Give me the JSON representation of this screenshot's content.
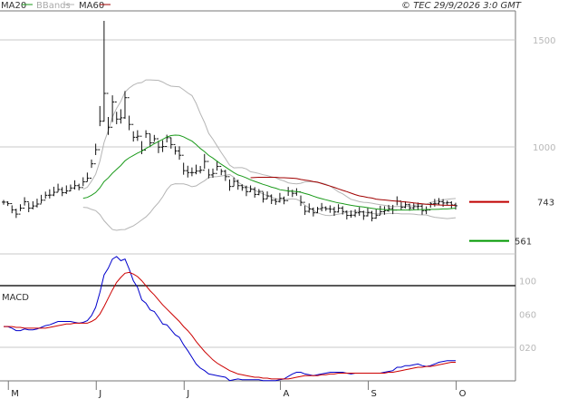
{
  "header": {
    "legend": [
      {
        "label": "MA20",
        "color": "#1a9a1a"
      },
      {
        "label": "BBands",
        "color": "#b5b5b5"
      },
      {
        "label": "MA60",
        "color": "#a00000"
      }
    ],
    "copyright": "© TEC 29/9/2026 3:0 GMT"
  },
  "macd_panel": {
    "label": "MACD"
  },
  "chart_data": [
    {
      "type": "ohlc",
      "name": "price",
      "y_ticks": [
        "1500",
        "1000"
      ],
      "y_tick_values": [
        1500,
        1000
      ],
      "ylim": [
        395,
        1620
      ],
      "x_labels": [
        "M",
        "J",
        "J",
        "A",
        "S",
        "O"
      ],
      "x_label_index": [
        2,
        23,
        44,
        67,
        88,
        109
      ],
      "n_bars": 109,
      "grid": true,
      "close": [
        742,
        735,
        706,
        686,
        714,
        744,
        714,
        724,
        733,
        751,
        774,
        775,
        788,
        801,
        786,
        794,
        808,
        819,
        810,
        837,
        854,
        921,
        987,
        1120,
        1250,
        1092,
        1210,
        1130,
        1136,
        1230,
        1105,
        1045,
        1050,
        985,
        1062,
        1019,
        1038,
        999,
        1002,
        1043,
        1011,
        981,
        961,
        889,
        880,
        880,
        887,
        891,
        932,
        869,
        876,
        909,
        886,
        861,
        815,
        839,
        819,
        810,
        791,
        802,
        778,
        792,
        757,
        771,
        751,
        745,
        760,
        749,
        793,
        783,
        790,
        741,
        699,
        710,
        692,
        711,
        716,
        711,
        709,
        696,
        714,
        698,
        680,
        681,
        692,
        696,
        678,
        694,
        667,
        681,
        697,
        702,
        712,
        705,
        747,
        718,
        730,
        715,
        721,
        723,
        702,
        705,
        734,
        736,
        744,
        738,
        740,
        729,
        725
      ],
      "high": [
        752,
        746,
        727,
        711,
        732,
        765,
        740,
        746,
        758,
        776,
        791,
        802,
        814,
        828,
        812,
        820,
        824,
        844,
        828,
        858,
        880,
        941,
        1015,
        1191,
        1589,
        1140,
        1241,
        1164,
        1176,
        1261,
        1146,
        1073,
        1078,
        1027,
        1078,
        1061,
        1056,
        1029,
        1031,
        1057,
        1044,
        1003,
        1003,
        926,
        912,
        904,
        917,
        911,
        967,
        897,
        899,
        935,
        897,
        893,
        848,
        857,
        847,
        825,
        819,
        820,
        812,
        803,
        789,
        792,
        778,
        760,
        785,
        768,
        813,
        800,
        807,
        773,
        726,
        736,
        717,
        720,
        738,
        722,
        727,
        720,
        732,
        723,
        703,
        703,
        708,
        719,
        702,
        715,
        701,
        710,
        725,
        723,
        729,
        729,
        769,
        742,
        746,
        735,
        737,
        740,
        731,
        722,
        742,
        757,
        761,
        756,
        749,
        746,
        739
      ],
      "low": [
        730,
        724,
        690,
        668,
        700,
        726,
        695,
        708,
        717,
        736,
        758,
        759,
        770,
        789,
        770,
        780,
        793,
        801,
        797,
        817,
        838,
        902,
        962,
        1097,
        1118,
        1056,
        1116,
        1106,
        1109,
        1131,
        1078,
        1025,
        1028,
        966,
        1042,
        999,
        1024,
        971,
        976,
        1021,
        992,
        964,
        940,
        870,
        857,
        863,
        872,
        876,
        898,
        853,
        856,
        889,
        868,
        841,
        795,
        816,
        800,
        795,
        770,
        789,
        763,
        774,
        740,
        757,
        733,
        729,
        740,
        732,
        771,
        766,
        772,
        724,
        682,
        692,
        675,
        690,
        699,
        701,
        692,
        678,
        693,
        684,
        661,
        669,
        672,
        678,
        659,
        675,
        652,
        664,
        682,
        683,
        697,
        686,
        727,
        705,
        713,
        702,
        705,
        704,
        683,
        686,
        716,
        721,
        728,
        720,
        727,
        713,
        707
      ]
    },
    {
      "type": "line",
      "name": "overlays",
      "series": [
        {
          "name": "MA20",
          "color": "#1a9a1a",
          "values": [
            null,
            null,
            null,
            null,
            null,
            null,
            null,
            null,
            null,
            null,
            null,
            null,
            null,
            null,
            null,
            null,
            null,
            null,
            null,
            760,
            764,
            774,
            787,
            809,
            838,
            855,
            877,
            895,
            913,
            935,
            949,
            960,
            971,
            980,
            993,
            1003,
            1015,
            1025,
            1035,
            1046,
            1053,
            1055,
            1054,
            1047,
            1037,
            1027,
            1011,
            993,
            978,
            960,
            948,
            933,
            919,
            906,
            893,
            880,
            869,
            863,
            855,
            846,
            839,
            832,
            825,
            819,
            812,
            807,
            800,
            797,
            794,
            793,
            791,
            788,
            782,
            777,
            770,
            763,
            758,
            753,
            748,
            743,
            738,
            735,
            731,
            727,
            724,
            721,
            719,
            716,
            713,
            710,
            709,
            707,
            706,
            705,
            705,
            705,
            705,
            705,
            706,
            707,
            707,
            707,
            708,
            708,
            709,
            710,
            710,
            712,
            714
          ]
        },
        {
          "name": "MA60",
          "color": "#a00000",
          "values": [
            null,
            null,
            null,
            null,
            null,
            null,
            null,
            null,
            null,
            null,
            null,
            null,
            null,
            null,
            null,
            null,
            null,
            null,
            null,
            null,
            null,
            null,
            null,
            null,
            null,
            null,
            null,
            null,
            null,
            null,
            null,
            null,
            null,
            null,
            null,
            null,
            null,
            null,
            null,
            null,
            null,
            null,
            null,
            null,
            null,
            null,
            null,
            null,
            null,
            null,
            null,
            null,
            null,
            null,
            null,
            null,
            null,
            null,
            null,
            856,
            857,
            858,
            858,
            858,
            858,
            858,
            856,
            856,
            855,
            854,
            852,
            848,
            845,
            842,
            838,
            835,
            829,
            823,
            817,
            811,
            804,
            797,
            791,
            784,
            777,
            771,
            768,
            764,
            761,
            756,
            754,
            752,
            750,
            748,
            746,
            745,
            743,
            741,
            738,
            736,
            734,
            732,
            731,
            730,
            729,
            728,
            727,
            727,
            726
          ]
        },
        {
          "name": "BB Upper",
          "color": "#b5b5b5",
          "values": [
            null,
            null,
            null,
            null,
            null,
            null,
            null,
            null,
            null,
            null,
            null,
            null,
            null,
            null,
            null,
            null,
            null,
            null,
            null,
            802,
            812,
            840,
            872,
            934,
            1021,
            1076,
            1140,
            1180,
            1213,
            1256,
            1275,
            1289,
            1298,
            1301,
            1313,
            1313,
            1312,
            1311,
            1303,
            1292,
            1284,
            1282,
            1281,
            1267,
            1252,
            1240,
            1204,
            1156,
            1114,
            1063,
            1036,
            1005,
            974,
            945,
            915,
            902,
            903,
            903,
            897,
            884,
            880,
            876,
            870,
            866,
            860,
            856,
            847,
            841,
            832,
            829,
            827,
            830,
            837,
            838,
            837,
            834,
            831,
            826,
            817,
            804,
            790,
            781,
            768,
            755,
            750,
            744,
            741,
            740,
            737,
            733,
            730,
            727,
            723,
            721,
            721,
            723,
            723,
            723,
            726,
            731,
            732,
            732,
            740,
            745,
            749,
            753,
            755,
            757,
            759
          ]
        },
        {
          "name": "BB Lower",
          "color": "#b5b5b5",
          "values": [
            null,
            null,
            null,
            null,
            null,
            null,
            null,
            null,
            null,
            null,
            null,
            null,
            null,
            null,
            null,
            null,
            null,
            null,
            null,
            718,
            716,
            708,
            702,
            684,
            655,
            634,
            614,
            610,
            613,
            614,
            623,
            631,
            644,
            659,
            673,
            693,
            718,
            739,
            767,
            800,
            822,
            828,
            827,
            827,
            822,
            814,
            818,
            830,
            842,
            857,
            860,
            861,
            864,
            867,
            871,
            858,
            835,
            823,
            813,
            808,
            798,
            788,
            780,
            772,
            764,
            758,
            753,
            753,
            756,
            757,
            755,
            746,
            727,
            716,
            703,
            692,
            685,
            680,
            679,
            682,
            686,
            689,
            694,
            699,
            698,
            698,
            697,
            692,
            689,
            687,
            688,
            687,
            689,
            689,
            689,
            687,
            687,
            687,
            686,
            683,
            682,
            682,
            676,
            671,
            669,
            667,
            665,
            667,
            669
          ]
        }
      ]
    },
    {
      "type": "hline",
      "name": "levels",
      "series": [
        {
          "name": "743",
          "value": 743,
          "color": "#c00000"
        },
        {
          "name": "561",
          "value": 561,
          "color": "#009900"
        }
      ]
    },
    {
      "type": "line",
      "name": "macd",
      "y_ticks": [
        "100",
        "060",
        "020"
      ],
      "y_tick_values": [
        100,
        60,
        20
      ],
      "ylim": [
        -20,
        128
      ],
      "series": [
        {
          "name": "MACD",
          "color": "#0000cc",
          "values": [
            45,
            45,
            43,
            40,
            40,
            42,
            41,
            41,
            42,
            44,
            46,
            47,
            49,
            51,
            51,
            51,
            51,
            50,
            49,
            50,
            52,
            58,
            68,
            86,
            107,
            115,
            126,
            129,
            124,
            126,
            114,
            100,
            92,
            77,
            73,
            65,
            63,
            56,
            48,
            47,
            41,
            35,
            32,
            23,
            16,
            8,
            0,
            -5,
            -8,
            -12,
            -13,
            -14,
            -15,
            -16,
            -20,
            -19,
            -18,
            -19,
            -19,
            -19,
            -19,
            -19,
            -20,
            -20,
            -20,
            -20,
            -19,
            -18,
            -15,
            -12,
            -10,
            -10,
            -12,
            -13,
            -14,
            -13,
            -12,
            -11,
            -10,
            -10,
            -10,
            -10,
            -11,
            -12,
            -11,
            -11,
            -11,
            -11,
            -11,
            -11,
            -11,
            -10,
            -9,
            -8,
            -4,
            -4,
            -2,
            -2,
            -1,
            0,
            -2,
            -3,
            -2,
            0,
            2,
            3,
            4,
            4,
            4
          ]
        },
        {
          "name": "Signal",
          "color": "#cc0000",
          "values": [
            45,
            45,
            45,
            44,
            44,
            43,
            43,
            43,
            43,
            43,
            43,
            44,
            45,
            46,
            47,
            48,
            48,
            49,
            49,
            49,
            49,
            51,
            54,
            60,
            69,
            79,
            89,
            98,
            104,
            109,
            110,
            108,
            105,
            100,
            94,
            88,
            83,
            77,
            71,
            66,
            61,
            56,
            51,
            45,
            40,
            34,
            27,
            21,
            15,
            10,
            5,
            1,
            -2,
            -5,
            -8,
            -10,
            -12,
            -13,
            -14,
            -15,
            -16,
            -16,
            -17,
            -17,
            -18,
            -18,
            -18,
            -18,
            -18,
            -17,
            -16,
            -15,
            -14,
            -14,
            -14,
            -14,
            -13,
            -13,
            -12,
            -12,
            -11,
            -11,
            -11,
            -11,
            -11,
            -11,
            -11,
            -11,
            -11,
            -11,
            -11,
            -11,
            -10,
            -10,
            -9,
            -8,
            -7,
            -6,
            -5,
            -4,
            -4,
            -3,
            -3,
            -2,
            -1,
            0,
            1,
            2,
            2
          ]
        }
      ]
    }
  ]
}
